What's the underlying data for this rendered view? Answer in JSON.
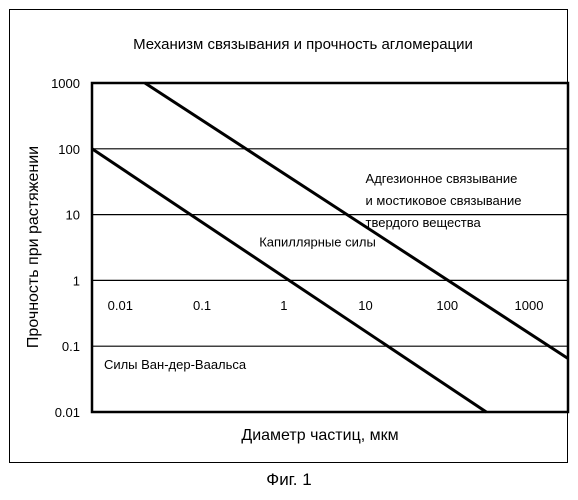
{
  "caption": "Фиг. 1",
  "chart_data": {
    "type": "line",
    "title": "Механизм связывания и прочность агломерации",
    "xlabel": "Диаметр частиц, мкм",
    "ylabel": "Прочность при растяжении",
    "xscale": "log",
    "yscale": "log",
    "xlim": [
      0.0045,
      3000
    ],
    "ylim": [
      0.01,
      1000
    ],
    "x_ticks": [
      "0.01",
      "0.1",
      "1",
      "10",
      "100",
      "1000"
    ],
    "y_ticks": [
      "1000",
      "100",
      "10",
      "1",
      "0.1",
      "0.01"
    ],
    "grid": "horizontal",
    "series": [
      {
        "x": [
          0.0045,
          300
        ],
        "y": [
          100,
          0.01
        ]
      },
      {
        "x": [
          0.02,
          3000
        ],
        "y": [
          1000,
          0.065
        ]
      }
    ],
    "annotations": [
      {
        "text": "Адгезионное связывание",
        "x": 10,
        "y": 30
      },
      {
        "text": "и мостиковое связывание",
        "x": 10,
        "y": 14
      },
      {
        "text": "твердого вещества",
        "x": 10,
        "y": 6.5
      },
      {
        "text": "Капиллярные силы",
        "x": 0.5,
        "y": 3.3
      },
      {
        "text": "Силы Ван-дер-Ваальса",
        "x": 0.0063,
        "y": 0.045
      }
    ]
  }
}
